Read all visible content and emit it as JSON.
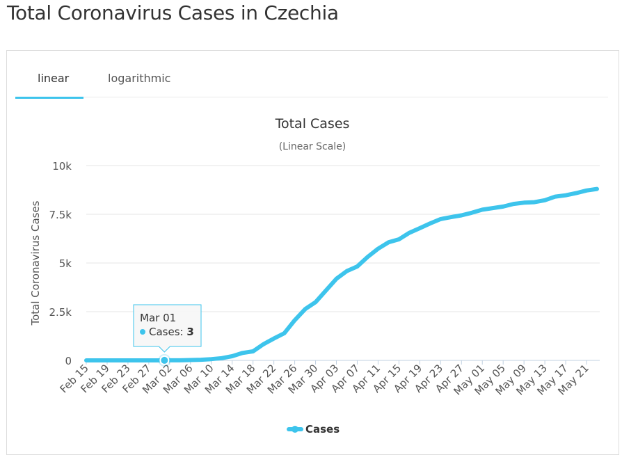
{
  "page": {
    "title": "Total Coronavirus Cases in Czechia"
  },
  "tabs": [
    {
      "label": "linear",
      "active": true
    },
    {
      "label": "logarithmic",
      "active": false
    }
  ],
  "colors": {
    "accent": "#3dc4ec",
    "series": "#3dc4ec",
    "grid": "#e6e6e6",
    "axis": "#c0d0e0"
  },
  "tooltip": {
    "date": "Mar 01",
    "series_label": "Cases: ",
    "value": "3"
  },
  "chart_data": {
    "type": "line",
    "title": "Total Cases",
    "subtitle": "(Linear Scale)",
    "ylabel": "Total Coronavirus Cases",
    "xlabel": "",
    "ylim": [
      0,
      10000
    ],
    "yticks": [
      0,
      2500,
      5000,
      7500,
      10000
    ],
    "ytick_labels": [
      "0",
      "2.5k",
      "5k",
      "7.5k",
      "10k"
    ],
    "xtick_labels": [
      "Feb 15",
      "Feb 19",
      "Feb 23",
      "Feb 27",
      "Mar 02",
      "Mar 06",
      "Mar 10",
      "Mar 14",
      "Mar 18",
      "Mar 22",
      "Mar 26",
      "Mar 30",
      "Apr 03",
      "Apr 07",
      "Apr 11",
      "Apr 15",
      "Apr 19",
      "Apr 23",
      "Apr 27",
      "May 01",
      "May 05",
      "May 09",
      "May 13",
      "May 17",
      "May 21"
    ],
    "legend": [
      "Cases"
    ],
    "legend_position": "bottom-center",
    "grid": true,
    "series": [
      {
        "name": "Cases",
        "x": [
          "Feb 15",
          "Feb 17",
          "Feb 19",
          "Feb 21",
          "Feb 23",
          "Feb 25",
          "Feb 27",
          "Feb 29",
          "Mar 01",
          "Mar 02",
          "Mar 04",
          "Mar 06",
          "Mar 08",
          "Mar 10",
          "Mar 12",
          "Mar 14",
          "Mar 16",
          "Mar 18",
          "Mar 20",
          "Mar 22",
          "Mar 24",
          "Mar 26",
          "Mar 28",
          "Mar 30",
          "Apr 01",
          "Apr 03",
          "Apr 05",
          "Apr 07",
          "Apr 09",
          "Apr 11",
          "Apr 13",
          "Apr 15",
          "Apr 17",
          "Apr 19",
          "Apr 21",
          "Apr 23",
          "Apr 25",
          "Apr 27",
          "Apr 29",
          "May 01",
          "May 03",
          "May 05",
          "May 07",
          "May 09",
          "May 11",
          "May 13",
          "May 15",
          "May 17",
          "May 19",
          "May 21",
          "May 23"
        ],
        "values": [
          0,
          0,
          0,
          0,
          0,
          0,
          0,
          0,
          3,
          3,
          5,
          19,
          31,
          63,
          116,
          214,
          383,
          464,
          833,
          1120,
          1394,
          2062,
          2631,
          2990,
          3589,
          4190,
          4587,
          4822,
          5312,
          5732,
          6059,
          6216,
          6549,
          6787,
          7033,
          7252,
          7352,
          7445,
          7579,
          7737,
          7819,
          7896,
          8031,
          8095,
          8123,
          8221,
          8406,
          8475,
          8586,
          8721,
          8800
        ]
      }
    ]
  }
}
